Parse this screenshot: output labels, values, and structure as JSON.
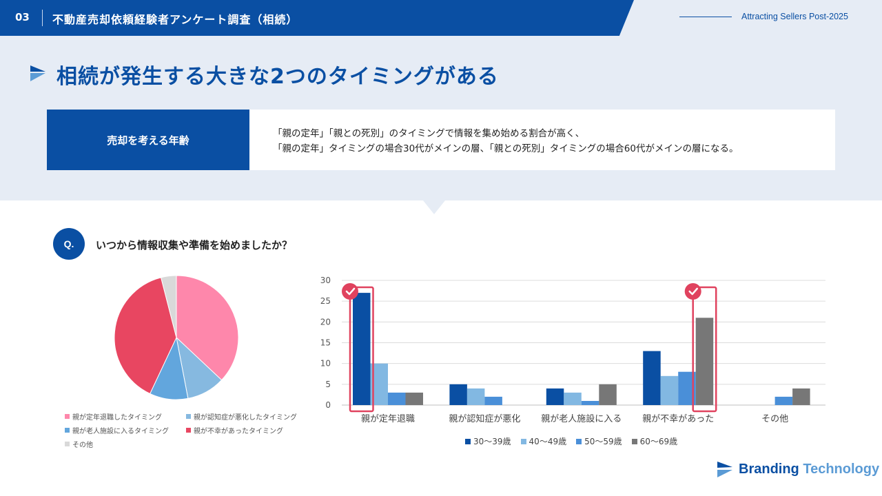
{
  "header": {
    "number": "03",
    "title": "不動産売却依頼経験者アンケート調査（相続）",
    "tagline": "Attracting Sellers Post-2025"
  },
  "headline": "相続が発生する大きな2つのタイミングがある",
  "summary": {
    "label": "売却を考える年齢",
    "line1": "「親の定年」「親との死別」のタイミングで情報を集め始める割合が高く、",
    "line2": "「親の定年」タイミングの場合30代がメインの層、「親との死別」タイミングの場合60代がメインの層になる。"
  },
  "question": {
    "badge": "Q.",
    "text": "いつから情報収集や準備を始めましたか？"
  },
  "brand": {
    "word1": "Branding",
    "word2": "Technology"
  },
  "colors": {
    "brand_blue": "#0a4fa3",
    "highlight_red": "#e0425e"
  },
  "chart_data": [
    {
      "type": "pie",
      "labels": [
        "親が定年退職したタイミング",
        "親が認知症が悪化したタイミング",
        "親が老人施設に入るタイミング",
        "親が不幸があったタイミング",
        "その他"
      ],
      "values": [
        37,
        10,
        10,
        39,
        4
      ],
      "colors": [
        "#fe87ab",
        "#86b9e0",
        "#62a6dd",
        "#e84661",
        "#d9d9d9"
      ]
    },
    {
      "type": "bar",
      "categories": [
        "親が定年退職",
        "親が認知症が悪化",
        "親が老人施設に入る",
        "親が不幸があった",
        "その他"
      ],
      "series": [
        {
          "name": "30〜39歳",
          "values": [
            27,
            5,
            4,
            13,
            0
          ],
          "color": "#0a4fa3"
        },
        {
          "name": "40〜49歳",
          "values": [
            10,
            4,
            3,
            7,
            0
          ],
          "color": "#82b8e2"
        },
        {
          "name": "50〜59歳",
          "values": [
            3,
            2,
            1,
            8,
            2
          ],
          "color": "#4a8fd8"
        },
        {
          "name": "60〜69歳",
          "values": [
            3,
            0,
            5,
            21,
            4
          ],
          "color": "#777777"
        }
      ],
      "ylim": [
        0,
        30
      ],
      "yticks": [
        0,
        5,
        10,
        15,
        20,
        25,
        30
      ],
      "grid": true,
      "legend": "bottom",
      "highlights": [
        {
          "category": "親が定年退職",
          "series": "30〜39歳"
        },
        {
          "category": "親が不幸があった",
          "series": "60〜69歳"
        }
      ]
    }
  ]
}
